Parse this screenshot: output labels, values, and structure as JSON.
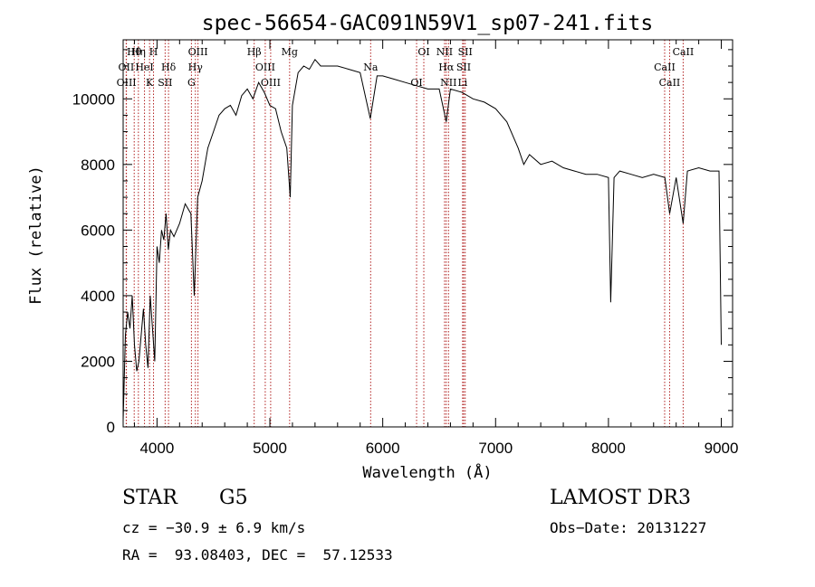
{
  "chart_data": {
    "type": "line",
    "title": "spec-56654-GAC091N59V1_sp07-241.fits",
    "xlabel": "Wavelength (Å)",
    "ylabel": "Flux (relative)",
    "xlim": [
      3700,
      9100
    ],
    "ylim": [
      0,
      11800
    ],
    "xticks": [
      4000,
      5000,
      6000,
      7000,
      8000,
      9000
    ],
    "yticks": [
      0,
      2000,
      4000,
      6000,
      8000,
      10000
    ],
    "grid": false,
    "line_color": "#000000",
    "marker_color": "#b22222",
    "series": [
      {
        "x": [
          3700,
          3720,
          3740,
          3760,
          3780,
          3800,
          3820,
          3840,
          3860,
          3880,
          3900,
          3920,
          3940,
          3960,
          3980,
          4000,
          4020,
          4040,
          4060,
          4080,
          4100,
          4120,
          4150,
          4200,
          4250,
          4300,
          4330,
          4360,
          4400,
          4450,
          4500,
          4550,
          4600,
          4650,
          4700,
          4750,
          4800,
          4850,
          4900,
          4950,
          5000,
          5050,
          5100,
          5150,
          5180,
          5200,
          5250,
          5300,
          5350,
          5400,
          5450,
          5500,
          5600,
          5700,
          5800,
          5890,
          5950,
          6000,
          6100,
          6200,
          6300,
          6400,
          6500,
          6563,
          6600,
          6700,
          6800,
          6900,
          7000,
          7100,
          7200,
          7250,
          7300,
          7400,
          7500,
          7600,
          7700,
          7800,
          7900,
          8000,
          8020,
          8050,
          8100,
          8200,
          8300,
          8400,
          8500,
          8542,
          8600,
          8662,
          8700,
          8800,
          8900,
          8980,
          9000
        ],
        "y": [
          200,
          2800,
          3500,
          3000,
          4000,
          2500,
          1700,
          2000,
          2800,
          3600,
          2500,
          1800,
          4000,
          3000,
          2000,
          5500,
          5000,
          6000,
          5700,
          6500,
          5400,
          6000,
          5800,
          6200,
          6800,
          6500,
          4000,
          7000,
          7500,
          8500,
          9000,
          9500,
          9700,
          9800,
          9500,
          10100,
          10300,
          10000,
          10500,
          10200,
          9800,
          9700,
          9000,
          8500,
          7000,
          9800,
          10800,
          11000,
          10900,
          11200,
          11000,
          11000,
          11000,
          10900,
          10800,
          9400,
          10700,
          10700,
          10600,
          10500,
          10400,
          10300,
          10300,
          9300,
          10300,
          10200,
          10000,
          9900,
          9700,
          9300,
          8500,
          8000,
          8300,
          8000,
          8100,
          7900,
          7800,
          7700,
          7700,
          7600,
          3800,
          7600,
          7800,
          7700,
          7600,
          7700,
          7600,
          6500,
          7600,
          6200,
          7800,
          7900,
          7800,
          7800,
          2500
        ]
      }
    ],
    "line_markers": [
      {
        "label": "Hθ",
        "x": 3798
      },
      {
        "label": "OII",
        "x": 3727
      },
      {
        "label": "OIII",
        "x": 3729
      },
      {
        "label": "Hη",
        "x": 3835
      },
      {
        "label": "HeI",
        "x": 3889
      },
      {
        "label": "K",
        "x": 3934
      },
      {
        "label": "H",
        "x": 3969
      },
      {
        "label": "Hδ",
        "x": 4102
      },
      {
        "label": "SII",
        "x": 4072
      },
      {
        "label": "OIII",
        "x": 4363
      },
      {
        "label": "Hγ",
        "x": 4340
      },
      {
        "label": "G",
        "x": 4305
      },
      {
        "label": "Hβ",
        "x": 4861
      },
      {
        "label": "OIII",
        "x": 4959
      },
      {
        "label": "OIII",
        "x": 5007
      },
      {
        "label": "Mg",
        "x": 5175
      },
      {
        "label": "Na",
        "x": 5893
      },
      {
        "label": "OI",
        "x": 6300
      },
      {
        "label": "OI",
        "x": 6364
      },
      {
        "label": "Hα",
        "x": 6563
      },
      {
        "label": "NII",
        "x": 6583
      },
      {
        "label": "NII",
        "x": 6548
      },
      {
        "label": "SII",
        "x": 6717
      },
      {
        "label": "Li",
        "x": 6708
      },
      {
        "label": "SII",
        "x": 6731
      },
      {
        "label": "CaII",
        "x": 8498
      },
      {
        "label": "CaII",
        "x": 8542
      },
      {
        "label": "CaII",
        "x": 8662
      }
    ]
  },
  "info": {
    "class": "STAR",
    "subclass": "G5",
    "survey": "LAMOST DR3",
    "cz": "cz = −30.9 ± 6.9 km/s",
    "obsdate": "Obs−Date: 20131227",
    "coords": "RA =  93.08403, DEC =  57.12533"
  }
}
